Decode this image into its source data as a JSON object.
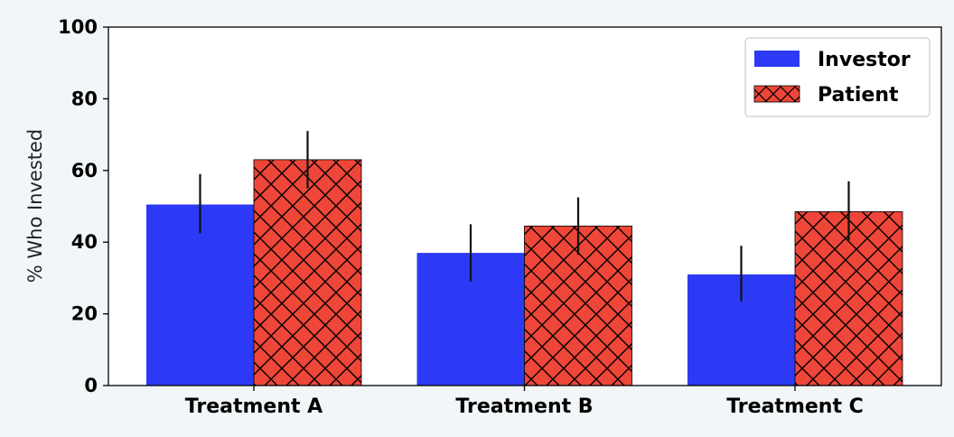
{
  "chart_data": {
    "type": "bar",
    "categories": [
      "Treatment A",
      "Treatment B",
      "Treatment C"
    ],
    "series": [
      {
        "name": "Investor",
        "values": [
          50.5,
          37,
          31
        ],
        "error_low": [
          42.5,
          29,
          23.5
        ],
        "error_high": [
          59,
          45,
          39
        ],
        "color": "#2c3af5",
        "hatch": false
      },
      {
        "name": "Patient",
        "values": [
          63,
          44.5,
          48.5
        ],
        "error_low": [
          55,
          36.5,
          40.5
        ],
        "error_high": [
          71,
          52.5,
          57
        ],
        "color": "#ee4638",
        "hatch": true
      }
    ],
    "title": "",
    "xlabel": "",
    "ylabel": "% Who Invested",
    "ylim": [
      0,
      100
    ],
    "yticks": [
      "0",
      "20",
      "40",
      "60",
      "80",
      "100"
    ],
    "legend_position": "top-right",
    "grid": false
  }
}
